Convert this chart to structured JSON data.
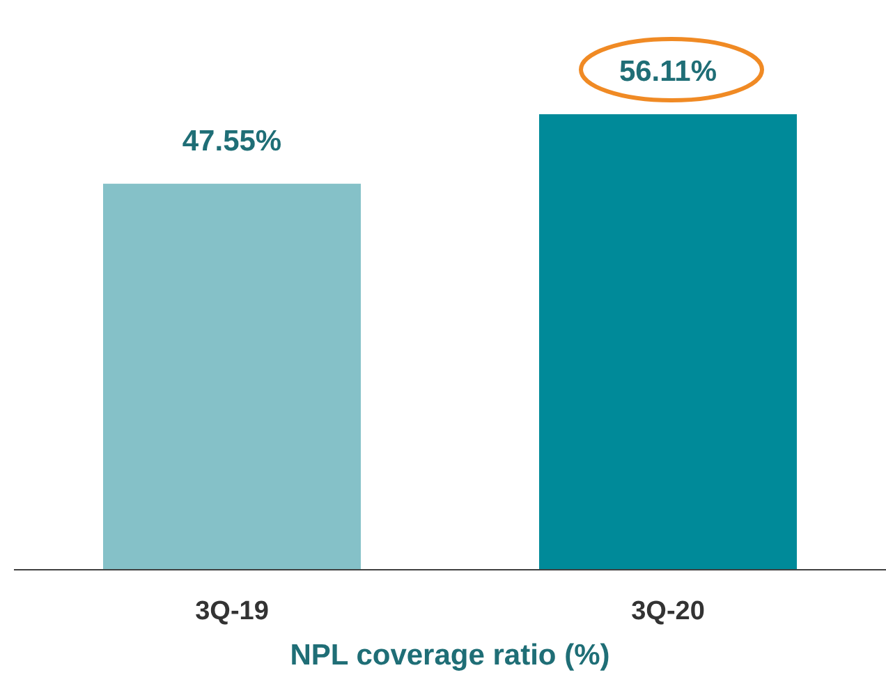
{
  "chart_data": {
    "type": "bar",
    "xlabel": "NPL coverage ratio (%)",
    "categories": [
      "3Q-19",
      "3Q-20"
    ],
    "values": [
      47.55,
      56.11
    ],
    "value_labels": [
      "47.55%",
      "56.11%"
    ],
    "colors": [
      "#85c1c8",
      "#008a99"
    ],
    "grid": false
  }
}
